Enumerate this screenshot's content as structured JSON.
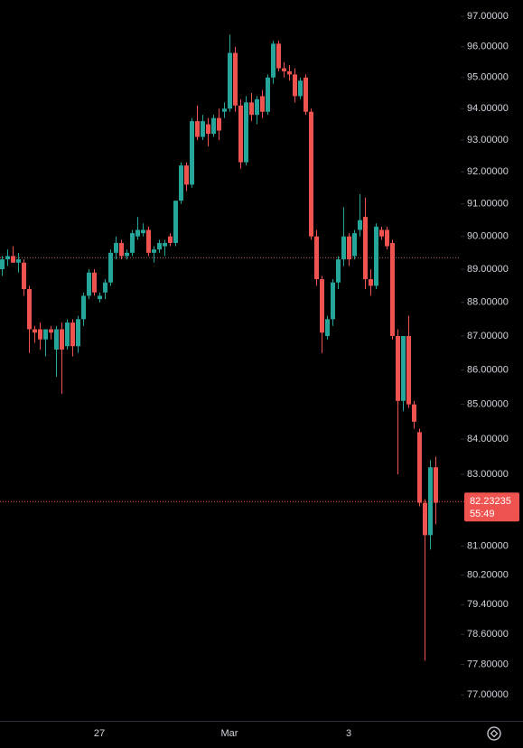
{
  "chart_data": {
    "type": "candlestick",
    "log_scale": true,
    "up_color": "#26a69a",
    "down_color": "#ef5350",
    "categories": [
      null,
      null,
      null,
      null,
      null,
      null,
      null,
      null,
      null,
      null,
      null,
      null,
      null,
      null,
      null,
      null,
      null,
      null,
      "27",
      null,
      null,
      null,
      null,
      null,
      null,
      null,
      null,
      null,
      null,
      null,
      null,
      null,
      null,
      null,
      null,
      null,
      null,
      null,
      null,
      null,
      null,
      null,
      "Mar",
      null,
      null,
      null,
      null,
      null,
      null,
      null,
      null,
      null,
      null,
      null,
      null,
      null,
      null,
      null,
      null,
      null,
      null,
      null,
      null,
      null,
      "3",
      null,
      null,
      null,
      null,
      null,
      null,
      null,
      null,
      null,
      null,
      null,
      null,
      null,
      null,
      null,
      null
    ],
    "open": [
      89.0,
      89.3,
      89.4,
      89.2,
      89.2,
      88.4,
      87.2,
      87.2,
      86.9,
      87.2,
      86.6,
      87.2,
      86.7,
      87.4,
      86.7,
      87.5,
      88.2,
      88.9,
      88.1,
      88.3,
      88.6,
      89.5,
      89.8,
      89.4,
      89.5,
      90.0,
      90.1,
      90.2,
      89.5,
      89.6,
      89.7,
      90.0,
      89.8,
      91.1,
      92.2,
      91.6,
      93.6,
      93.1,
      93.5,
      93.2,
      93.7,
      93.9,
      94.0,
      95.8,
      94.1,
      92.3,
      94.2,
      93.8,
      94.4,
      93.9,
      95.0,
      96.1,
      95.3,
      95.2,
      95.1,
      94.4,
      95.0,
      93.9,
      90.0,
      88.7,
      87.0,
      87.5,
      88.6,
      89.3,
      90.0,
      89.4,
      90.2,
      90.6,
      88.7,
      88.5,
      90.2,
      90.2,
      89.8,
      87.0,
      85.1,
      87.0,
      85.0,
      84.2,
      82.2,
      81.3,
      83.2
    ],
    "high": [
      89.4,
      89.6,
      89.7,
      89.5,
      89.3,
      88.5,
      87.3,
      87.4,
      87.2,
      87.3,
      87.3,
      87.4,
      87.5,
      87.5,
      87.6,
      88.3,
      89.0,
      89.0,
      88.3,
      88.7,
      89.6,
      90.0,
      89.9,
      89.6,
      90.2,
      90.6,
      90.4,
      90.3,
      89.7,
      89.9,
      89.9,
      90.1,
      91.1,
      92.3,
      92.3,
      93.7,
      94.1,
      93.8,
      93.7,
      93.8,
      94.0,
      94.2,
      96.4,
      96.0,
      94.3,
      94.4,
      94.5,
      94.4,
      94.6,
      95.1,
      96.2,
      96.2,
      95.5,
      95.4,
      95.3,
      95.0,
      95.1,
      94.0,
      90.2,
      88.8,
      87.6,
      88.7,
      89.4,
      90.9,
      90.1,
      90.2,
      91.3,
      91.2,
      89.0,
      90.4,
      90.3,
      90.3,
      89.9,
      87.2,
      87.0,
      87.6,
      85.1,
      84.3,
      82.3,
      83.4,
      83.5
    ],
    "low": [
      88.8,
      89.1,
      89.2,
      88.9,
      88.2,
      86.5,
      86.8,
      86.6,
      86.4,
      86.9,
      85.8,
      85.3,
      86.6,
      86.4,
      86.5,
      87.3,
      88.1,
      88.2,
      88.0,
      88.1,
      88.5,
      89.3,
      89.3,
      89.3,
      89.4,
      89.9,
      90.0,
      89.4,
      89.2,
      89.5,
      89.4,
      89.7,
      89.7,
      91.0,
      91.4,
      91.5,
      93.0,
      93.0,
      92.8,
      93.1,
      93.0,
      93.7,
      93.9,
      93.9,
      92.1,
      92.2,
      93.6,
      93.5,
      93.7,
      93.8,
      94.8,
      95.2,
      95.0,
      94.9,
      94.2,
      94.3,
      93.8,
      89.9,
      88.5,
      86.5,
      86.9,
      87.3,
      88.4,
      89.1,
      89.1,
      89.3,
      90.0,
      88.4,
      88.2,
      88.4,
      89.9,
      89.6,
      86.9,
      83.0,
      84.8,
      84.9,
      84.3,
      82.1,
      77.9,
      80.9,
      81.6
    ],
    "close": [
      89.3,
      89.4,
      89.2,
      89.3,
      88.4,
      87.2,
      87.1,
      86.9,
      87.2,
      87.1,
      87.2,
      86.6,
      87.4,
      86.7,
      87.5,
      88.2,
      88.9,
      88.3,
      88.2,
      88.6,
      89.5,
      89.8,
      89.4,
      89.5,
      90.1,
      90.2,
      90.2,
      89.5,
      89.6,
      89.8,
      89.8,
      89.8,
      91.1,
      92.2,
      91.6,
      93.6,
      93.1,
      93.6,
      93.2,
      93.7,
      93.3,
      94.0,
      95.8,
      94.1,
      92.3,
      94.2,
      93.8,
      94.3,
      93.9,
      95.0,
      96.1,
      95.3,
      95.2,
      95.1,
      94.4,
      94.9,
      93.9,
      90.0,
      88.7,
      87.1,
      87.5,
      88.6,
      89.3,
      90.0,
      89.3,
      90.1,
      90.5,
      88.7,
      88.5,
      90.3,
      90.0,
      89.7,
      87.0,
      85.1,
      87.0,
      85.0,
      84.5,
      82.2,
      81.3,
      83.2,
      82.2
    ],
    "ylim": [
      76.32,
      97.54
    ],
    "yticks": [
      {
        "value": 97,
        "label": "97.00000"
      },
      {
        "value": 96,
        "label": "96.00000"
      },
      {
        "value": 95,
        "label": "95.00000"
      },
      {
        "value": 94,
        "label": "94.00000"
      },
      {
        "value": 93,
        "label": "93.00000"
      },
      {
        "value": 92,
        "label": "92.00000"
      },
      {
        "value": 91,
        "label": "91.00000"
      },
      {
        "value": 90,
        "label": "90.00000"
      },
      {
        "value": 89,
        "label": "89.00000"
      },
      {
        "value": 88,
        "label": "88.00000"
      },
      {
        "value": 87,
        "label": "87.00000"
      },
      {
        "value": 86,
        "label": "86.00000"
      },
      {
        "value": 85,
        "label": "85.00000"
      },
      {
        "value": 84,
        "label": "84.00000"
      },
      {
        "value": 83,
        "label": "83.00000"
      },
      {
        "value": 81,
        "label": "81.00000"
      },
      {
        "value": 80.2,
        "label": "80.20000"
      },
      {
        "value": 79.4,
        "label": "79.40000"
      },
      {
        "value": 78.6,
        "label": "78.60000"
      },
      {
        "value": 77.8,
        "label": "77.80000"
      },
      {
        "value": 77,
        "label": "77.00000"
      }
    ],
    "reference_line": 89.35,
    "current_price": 82.23235,
    "countdown": "55:49"
  }
}
